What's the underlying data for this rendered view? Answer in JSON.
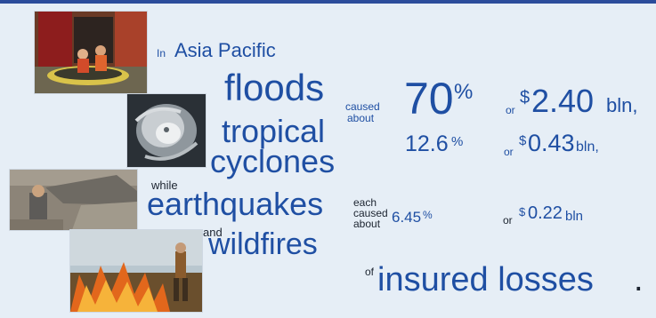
{
  "intro": {
    "in": "In",
    "region": "Asia Pacific"
  },
  "row1": {
    "hazard": "floods",
    "caused": "caused",
    "about": "about",
    "percent": "70",
    "percent_sign": "%",
    "or": "or",
    "currency": "$",
    "amount": "2.40",
    "unit": "bln,",
    "color": "#2b62b8"
  },
  "row2": {
    "hazard_line1": "tropical",
    "hazard_line2": "cyclones",
    "percent": "12.6",
    "percent_sign": "%",
    "or": "or",
    "currency": "$",
    "amount": "0.43",
    "unit": "bln,"
  },
  "row3": {
    "while": "while",
    "hazard": "earthquakes",
    "each": "each",
    "caused": "caused",
    "about": "about",
    "percent": "6.45",
    "percent_sign": "%",
    "or": "or",
    "currency": "$",
    "amount": "0.22",
    "unit": "bln"
  },
  "row4": {
    "and": "and",
    "hazard": "wildfires"
  },
  "footer": {
    "of": "of",
    "insured": "insured losses",
    "period": "."
  },
  "photos": [
    "flood-rescue-photo",
    "tropical-cyclone-satellite-photo",
    "earthquake-rubble-photo",
    "wildfire-photo"
  ],
  "colors": {
    "text_blue": "#1f4fa3",
    "background": "#e6eef6",
    "top_bar": "#2b4c9b"
  }
}
